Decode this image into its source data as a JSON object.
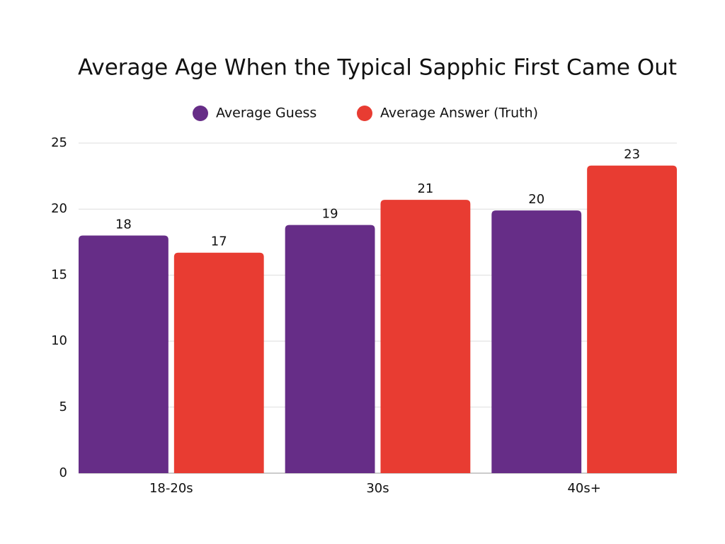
{
  "chart_data": {
    "type": "bar",
    "title": "Average Age When the Typical Sapphic First Came Out",
    "categories": [
      "18-20s",
      "30s",
      "40s+"
    ],
    "series": [
      {
        "name": "Average Guess",
        "color": "#662d87",
        "values": [
          18,
          18.8,
          19.9
        ],
        "value_labels": [
          "18",
          "19",
          "20"
        ]
      },
      {
        "name": "Average Answer (Truth)",
        "color": "#e83c32",
        "values": [
          16.7,
          20.7,
          23.3
        ],
        "value_labels": [
          "17",
          "21",
          "23"
        ]
      }
    ],
    "ylim": [
      0,
      25
    ],
    "yticks": [
      0,
      5,
      10,
      15,
      20,
      25
    ],
    "grid": true
  }
}
